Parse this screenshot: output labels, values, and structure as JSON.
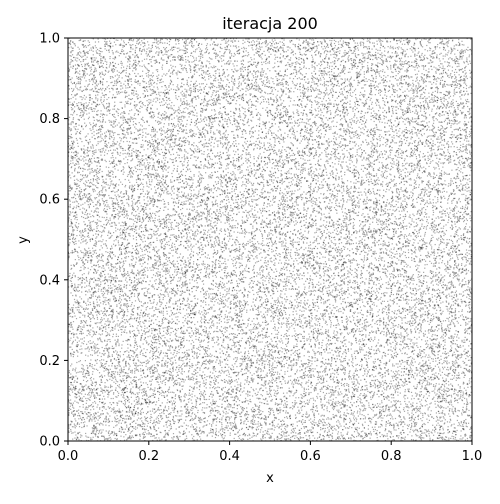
{
  "chart_data": {
    "type": "scatter",
    "title": "iteracja 200",
    "xlabel": "x",
    "ylabel": "y",
    "xlim": [
      0.0,
      1.0
    ],
    "ylim": [
      0.0,
      1.0
    ],
    "xticks": [
      "0.0",
      "0.2",
      "0.4",
      "0.6",
      "0.8",
      "1.0"
    ],
    "yticks": [
      "0.0",
      "0.2",
      "0.4",
      "0.6",
      "0.8",
      "1.0"
    ],
    "grid": false,
    "legend": null,
    "point_color": "#000000",
    "point_alpha": 0.35,
    "approx_point_count": 25000,
    "distribution": "uniform random over unit square"
  }
}
